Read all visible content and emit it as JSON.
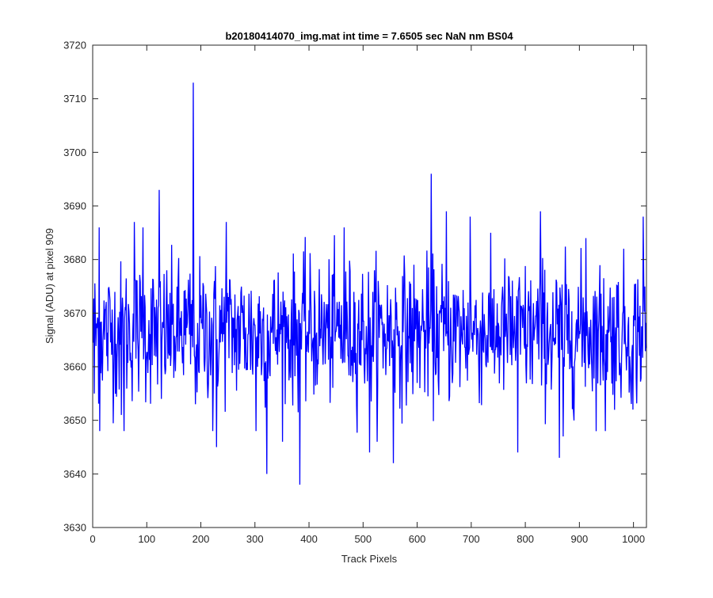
{
  "chart_data": {
    "type": "line",
    "title": "b20180414070_img.mat int time = 7.6505 sec  NaN nm BS04",
    "xlabel": "Track Pixels",
    "ylabel": "Signal (ADU) at pixel 909",
    "xlim": [
      0,
      1024
    ],
    "ylim": [
      3630,
      3720
    ],
    "xticks": [
      0,
      100,
      200,
      300,
      400,
      500,
      600,
      700,
      800,
      900,
      1000
    ],
    "yticks": [
      3630,
      3640,
      3650,
      3660,
      3670,
      3680,
      3690,
      3700,
      3710,
      3720
    ],
    "grid": false,
    "legend": "none",
    "series": [
      {
        "color": "#0000ff",
        "x_start": 1,
        "x_step": 1,
        "mean": 3666.5,
        "std": 6.5,
        "notable_points": [
          {
            "x": 3,
            "y": 3655
          },
          {
            "x": 12,
            "y": 3686
          },
          {
            "x": 13,
            "y": 3648
          },
          {
            "x": 53,
            "y": 3651
          },
          {
            "x": 58,
            "y": 3648
          },
          {
            "x": 77,
            "y": 3687
          },
          {
            "x": 93,
            "y": 3686
          },
          {
            "x": 123,
            "y": 3693
          },
          {
            "x": 127,
            "y": 3654
          },
          {
            "x": 186,
            "y": 3713
          },
          {
            "x": 190,
            "y": 3653
          },
          {
            "x": 222,
            "y": 3648
          },
          {
            "x": 229,
            "y": 3645
          },
          {
            "x": 247,
            "y": 3687
          },
          {
            "x": 302,
            "y": 3648
          },
          {
            "x": 322,
            "y": 3640
          },
          {
            "x": 383,
            "y": 3638
          },
          {
            "x": 465,
            "y": 3686
          },
          {
            "x": 512,
            "y": 3644
          },
          {
            "x": 556,
            "y": 3642
          },
          {
            "x": 626,
            "y": 3696
          },
          {
            "x": 654,
            "y": 3689
          },
          {
            "x": 698,
            "y": 3688
          },
          {
            "x": 786,
            "y": 3644
          },
          {
            "x": 828,
            "y": 3689
          },
          {
            "x": 863,
            "y": 3643
          },
          {
            "x": 870,
            "y": 3647
          },
          {
            "x": 912,
            "y": 3684
          },
          {
            "x": 948,
            "y": 3648
          },
          {
            "x": 999,
            "y": 3652
          },
          {
            "x": 1018,
            "y": 3688
          }
        ]
      }
    ]
  }
}
